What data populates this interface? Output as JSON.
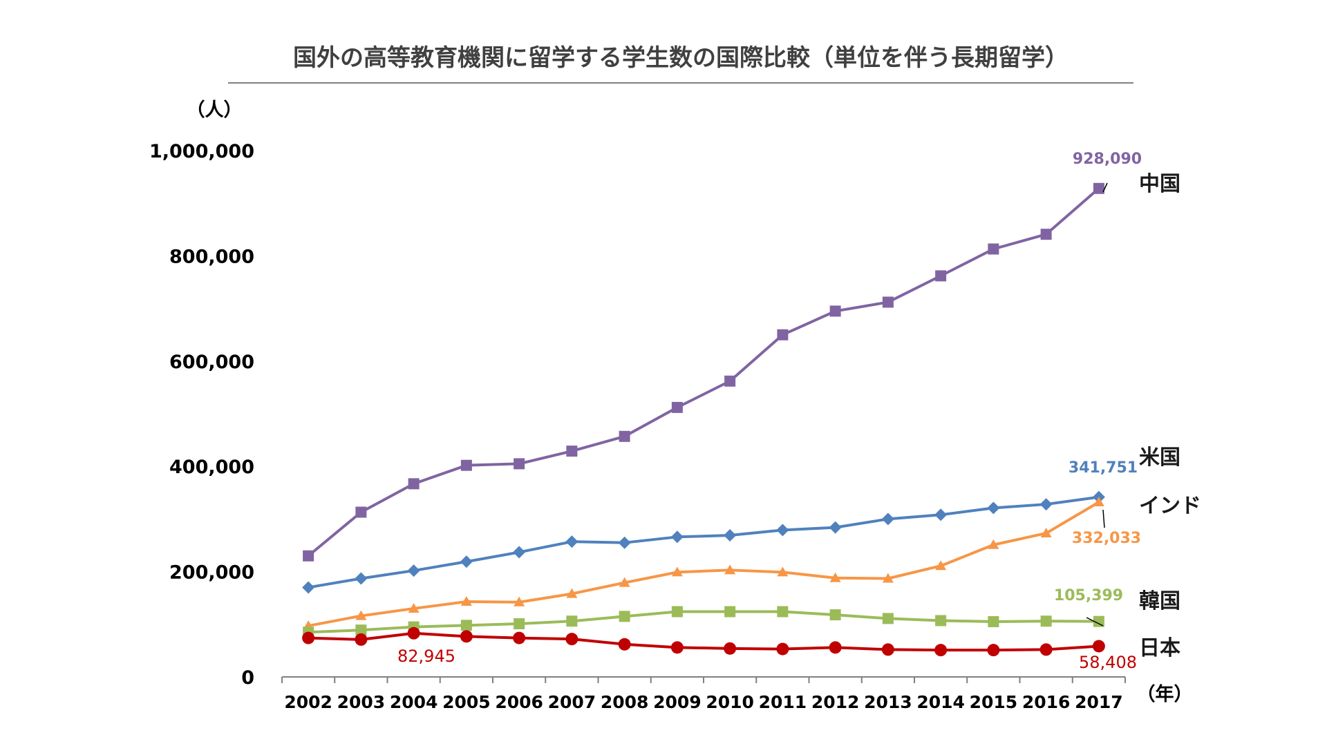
{
  "chart_data": {
    "type": "line",
    "title": "国外の高等教育機関に留学する学生数の国際比較（単位を伴う長期留学）",
    "ylabel": "（人）",
    "xlabel": "（年）",
    "ylim": [
      0,
      1000000
    ],
    "yticks": [
      0,
      200000,
      400000,
      600000,
      800000,
      1000000
    ],
    "ytick_labels": [
      "0",
      "200,000",
      "400,000",
      "600,000",
      "800,000",
      "1,000,000"
    ],
    "categories": [
      "2002",
      "2003",
      "2004",
      "2005",
      "2006",
      "2007",
      "2008",
      "2009",
      "2010",
      "2011",
      "2012",
      "2013",
      "2014",
      "2015",
      "2016",
      "2017"
    ],
    "grid": false,
    "legend": "none",
    "series": [
      {
        "name": "中国",
        "color": "#8064A2",
        "marker": "square",
        "values": [
          230000,
          313000,
          367000,
          402000,
          405000,
          429000,
          457000,
          512000,
          562000,
          650000,
          695000,
          712000,
          762000,
          813000,
          841000,
          928090
        ]
      },
      {
        "name": "米国",
        "color": "#4F81BD",
        "marker": "diamond",
        "values": [
          170000,
          187000,
          202000,
          219000,
          237000,
          257000,
          255000,
          266000,
          269000,
          279000,
          284000,
          300000,
          308000,
          321000,
          328000,
          341751
        ]
      },
      {
        "name": "インド",
        "color": "#F79646",
        "marker": "triangle",
        "values": [
          97000,
          116000,
          130000,
          143000,
          142000,
          158000,
          179000,
          199000,
          203000,
          199000,
          188000,
          187000,
          211000,
          251000,
          273000,
          332033
        ]
      },
      {
        "name": "韓国",
        "color": "#9BBB59",
        "marker": "square",
        "values": [
          85000,
          89000,
          95000,
          98000,
          101000,
          106000,
          115000,
          124000,
          124000,
          124000,
          118000,
          111000,
          107000,
          105000,
          106000,
          105399
        ]
      },
      {
        "name": "日本",
        "color": "#C00000",
        "marker": "circle",
        "values": [
          74000,
          71000,
          82945,
          77000,
          74000,
          72000,
          62000,
          56000,
          54000,
          53000,
          56000,
          52000,
          51000,
          51000,
          52000,
          58408
        ]
      }
    ],
    "annotations": [
      {
        "series": "中国",
        "label": "928,090"
      },
      {
        "series": "米国",
        "label": "341,751"
      },
      {
        "series": "インド",
        "label": "332,033"
      },
      {
        "series": "韓国",
        "label": "105,399"
      },
      {
        "series": "日本",
        "label": "58,408"
      },
      {
        "series": "日本",
        "label": "82,945"
      }
    ]
  }
}
